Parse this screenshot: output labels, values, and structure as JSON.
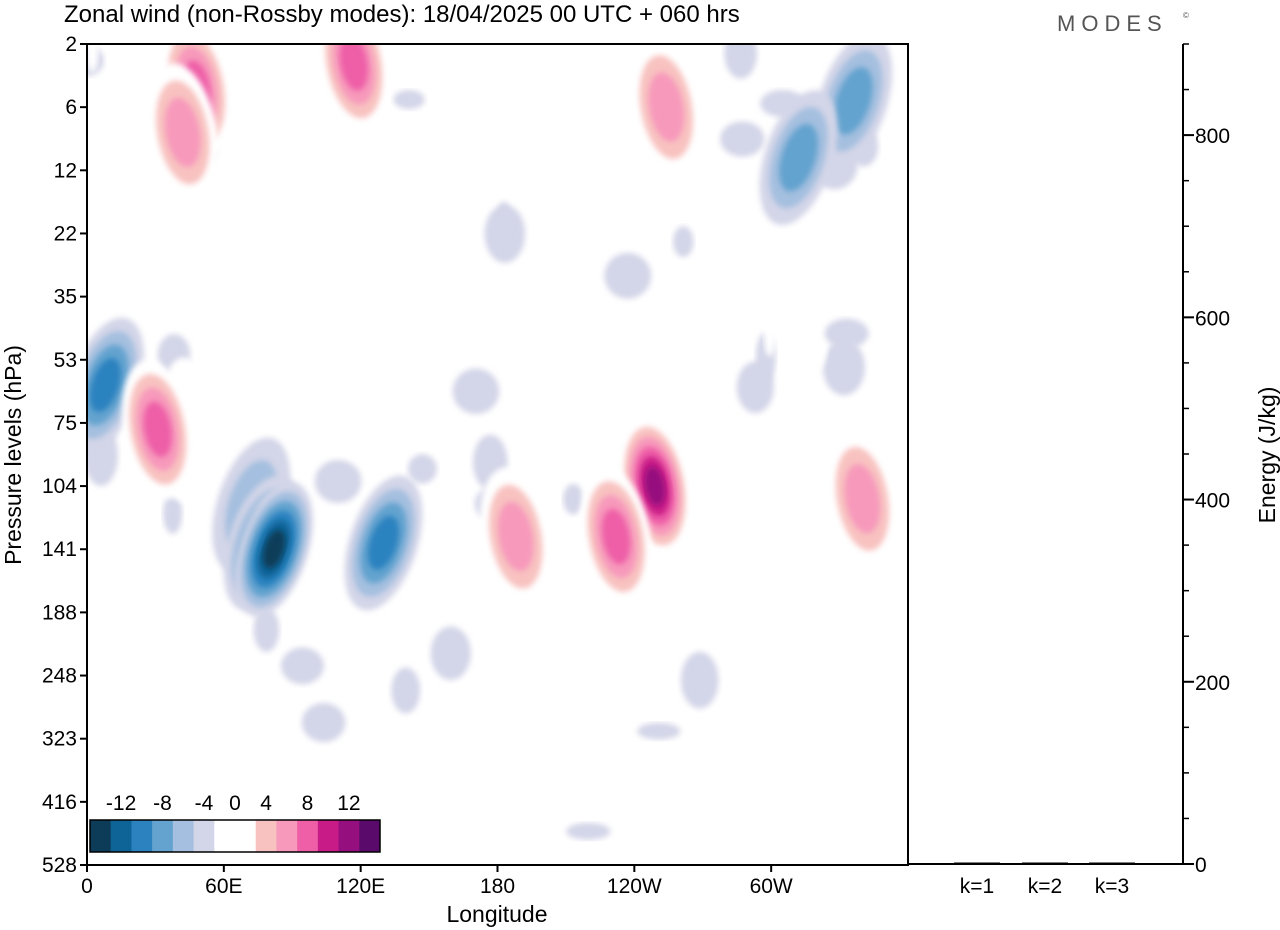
{
  "title": "Zonal wind (non-Rossby modes):  18/04/2025  00 UTC  + 060 hrs",
  "logo": "MODES",
  "logo_mark": "©",
  "chart_data": [
    {
      "type": "heatmap",
      "title": "Zonal wind (non-Rossby modes):  18/04/2025  00 UTC  + 060 hrs",
      "xlabel": "Longitude",
      "ylabel": "Pressure levels (hPa)",
      "x_ticks": [
        "0",
        "60E",
        "120E",
        "180",
        "120W",
        "60W"
      ],
      "x_tick_lon": [
        0,
        60,
        120,
        180,
        240,
        300
      ],
      "xlim": [
        0,
        360
      ],
      "y_ticks": [
        "2",
        "6",
        "12",
        "22",
        "35",
        "53",
        "75",
        "104",
        "141",
        "188",
        "248",
        "323",
        "416",
        "528"
      ],
      "y_scale": "level-index",
      "grid": false,
      "colorbar": {
        "labels": [
          "-12",
          "-8",
          "-4",
          "0",
          "4",
          "8",
          "12"
        ],
        "levels": [
          -14,
          -12,
          -10,
          -8,
          -6,
          -4,
          -2,
          2,
          4,
          6,
          8,
          10,
          12,
          14
        ],
        "colors": [
          "#0c3c58",
          "#0e6497",
          "#2b82bf",
          "#64a3cf",
          "#a4bfdf",
          "#d3d5e8",
          "#ffffff",
          "#ffffff",
          "#f8c2c0",
          "#f799bb",
          "#ee5fa7",
          "#c91b87",
          "#95107e",
          "#5a0a6b"
        ],
        "placement": "bottom-left"
      },
      "features": [
        {
          "lon": 72,
          "level": 7.3,
          "value": -4
        },
        {
          "lon": 77,
          "level": 7.9,
          "value": -8
        },
        {
          "lon": 82,
          "level": 8.0,
          "value": -12
        },
        {
          "lon": 130,
          "level": 7.9,
          "value": -8
        },
        {
          "lon": 249,
          "level": 7.0,
          "value": 12
        },
        {
          "lon": 232,
          "level": 7.8,
          "value": 8
        },
        {
          "lon": 188,
          "level": 7.8,
          "value": 6
        },
        {
          "lon": 340,
          "level": 7.2,
          "value": 6
        },
        {
          "lon": 48,
          "level": 0.7,
          "value": 8
        },
        {
          "lon": 42,
          "level": 1.4,
          "value": 6
        },
        {
          "lon": 117,
          "level": 0.3,
          "value": 8
        },
        {
          "lon": 8,
          "level": 5.4,
          "value": -8
        },
        {
          "lon": 31,
          "level": 6.1,
          "value": 8
        },
        {
          "lon": 254,
          "level": 1.0,
          "value": 6
        },
        {
          "lon": 336,
          "level": 0.9,
          "value": -6
        },
        {
          "lon": 312,
          "level": 1.8,
          "value": -6
        }
      ]
    },
    {
      "type": "bar",
      "categories": [
        "k=1",
        "k=2",
        "k=3"
      ],
      "values": [
        0.8,
        0.6,
        0.4
      ],
      "ylabel": "Energy (J/kg)",
      "ylim": [
        0,
        900
      ],
      "y_ticks": [
        0,
        200,
        400,
        600,
        800
      ],
      "y_minor_step": 50
    }
  ]
}
